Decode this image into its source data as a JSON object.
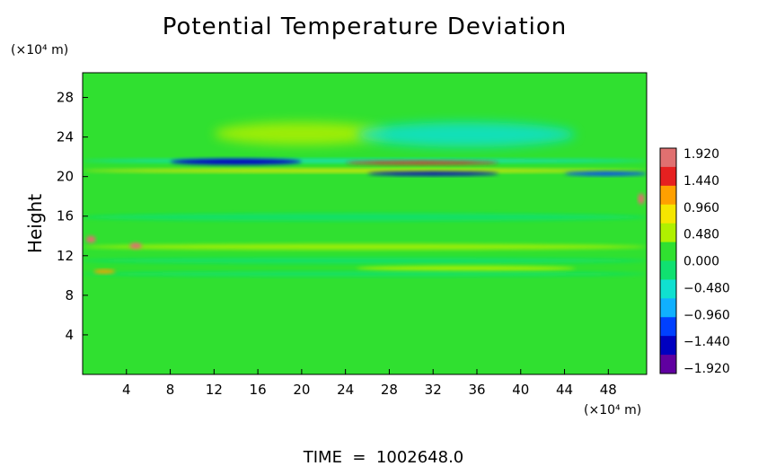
{
  "chart_data": {
    "type": "heatmap",
    "title": "Potential Temperature Deviation",
    "xlabel": "",
    "ylabel": "Height",
    "x_unit": "(×10⁴ m)",
    "y_unit": "(×10⁴ m)",
    "footer": "TIME  =  1002648.0",
    "xlim": [
      0,
      51.5
    ],
    "ylim": [
      0,
      30.5
    ],
    "x_ticks": [
      "4",
      "8",
      "12",
      "16",
      "20",
      "24",
      "28",
      "32",
      "36",
      "40",
      "44",
      "48"
    ],
    "x_tick_values": [
      4,
      8,
      12,
      16,
      20,
      24,
      28,
      32,
      36,
      40,
      44,
      48
    ],
    "y_ticks": [
      "4",
      "8",
      "12",
      "16",
      "20",
      "24",
      "28"
    ],
    "y_tick_values": [
      4,
      8,
      12,
      16,
      20,
      24,
      28
    ],
    "colorbar": {
      "labels": [
        "1.920",
        "1.440",
        "0.960",
        "0.480",
        "0.000",
        "−0.480",
        "−0.960",
        "−1.440",
        "−1.920"
      ],
      "values": [
        1.92,
        1.44,
        0.96,
        0.48,
        0.0,
        -0.48,
        -0.96,
        -1.44,
        -1.92
      ],
      "colors": [
        "#e07070",
        "#e62020",
        "#ffa000",
        "#f5e600",
        "#b0f000",
        "#30e030",
        "#10e070",
        "#10e0d0",
        "#10b0ff",
        "#0040ff",
        "#0000c0",
        "#6000a0"
      ],
      "legend_position": "right"
    },
    "background_value": 0.1,
    "features": [
      {
        "x": [
          12,
          28
        ],
        "y": [
          23.2,
          25.5
        ],
        "value": 0.5
      },
      {
        "x": [
          25,
          45
        ],
        "y": [
          23,
          25.5
        ],
        "value": -0.4
      },
      {
        "x": [
          0,
          51.5
        ],
        "y": [
          21.4,
          21.8
        ],
        "value": -0.6
      },
      {
        "x": [
          8,
          20
        ],
        "y": [
          21.2,
          21.8
        ],
        "value": -1.5
      },
      {
        "x": [
          24,
          38
        ],
        "y": [
          21.2,
          21.6
        ],
        "value": 1.3
      },
      {
        "x": [
          0,
          51.5
        ],
        "y": [
          20.4,
          20.8
        ],
        "value": 0.8
      },
      {
        "x": [
          26,
          38
        ],
        "y": [
          20.1,
          20.5
        ],
        "value": -1.3
      },
      {
        "x": [
          44,
          51.5
        ],
        "y": [
          20.1,
          20.5
        ],
        "value": -1.0
      },
      {
        "x": [
          0,
          51.5
        ],
        "y": [
          15.5,
          16.3
        ],
        "value": -0.2
      },
      {
        "x": [
          0,
          51.5
        ],
        "y": [
          12.6,
          13.2
        ],
        "value": 0.45
      },
      {
        "x": [
          0,
          51.5
        ],
        "y": [
          11.2,
          11.8
        ],
        "value": -0.3
      },
      {
        "x": [
          25,
          45
        ],
        "y": [
          10.4,
          11
        ],
        "value": 0.6
      },
      {
        "x": [
          0,
          51.5
        ],
        "y": [
          9.9,
          10.4
        ],
        "value": -0.25
      },
      {
        "x": [
          0.3,
          1.2
        ],
        "y": [
          13.3,
          14.0
        ],
        "value": 1.9
      },
      {
        "x": [
          4.3,
          5.4
        ],
        "y": [
          12.7,
          13.3
        ],
        "value": 1.7
      },
      {
        "x": [
          50.7,
          51.3
        ],
        "y": [
          17.2,
          18.3
        ],
        "value": 1.9
      },
      {
        "x": [
          1,
          3
        ],
        "y": [
          10.2,
          10.6
        ],
        "value": 1.2
      }
    ]
  }
}
